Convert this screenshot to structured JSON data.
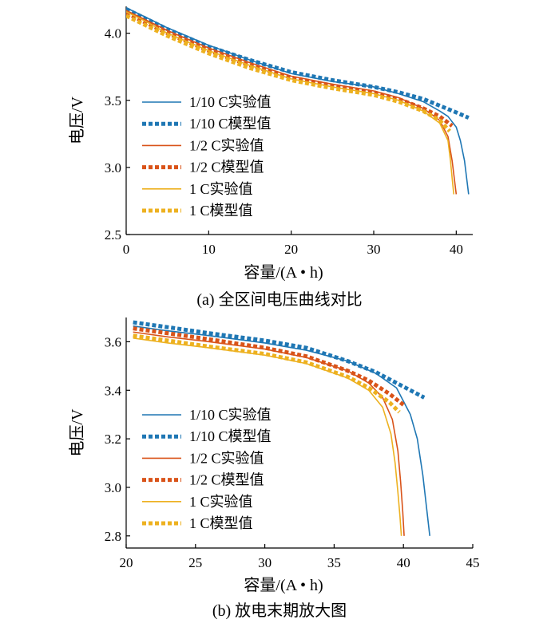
{
  "colors": {
    "s1_10": "#1f77b4",
    "s1_2": "#d95319",
    "s1": "#edb120"
  },
  "chart_data": [
    {
      "type": "line",
      "caption": "(a)  全区间电压曲线对比",
      "xlabel": "容量/(A • h)",
      "ylabel": "电压/V",
      "xlim": [
        0,
        42
      ],
      "ylim": [
        2.5,
        4.2
      ],
      "xticks": [
        0,
        10,
        20,
        30,
        40
      ],
      "yticks": [
        2.5,
        3.0,
        3.5,
        4.0
      ],
      "ytick_labels": [
        "2.5",
        "3.0",
        "3.5",
        "4.0"
      ],
      "legend_position": "left",
      "series": [
        {
          "name": "1/10 C实验值",
          "style": "solid",
          "color_key": "s1_10",
          "x": [
            0,
            2,
            5,
            10,
            15,
            20,
            25,
            30,
            33,
            36,
            38,
            39,
            40,
            40.5,
            41,
            41.3,
            41.5
          ],
          "y": [
            4.19,
            4.13,
            4.04,
            3.91,
            3.8,
            3.7,
            3.64,
            3.6,
            3.55,
            3.49,
            3.42,
            3.38,
            3.3,
            3.2,
            3.05,
            2.9,
            2.8
          ]
        },
        {
          "name": "1/10 C模型值",
          "style": "dotted",
          "color_key": "s1_10",
          "x": [
            0,
            2,
            5,
            10,
            15,
            20,
            25,
            30,
            33,
            36,
            38,
            40,
            41.5
          ],
          "y": [
            4.18,
            4.12,
            4.03,
            3.9,
            3.8,
            3.71,
            3.65,
            3.6,
            3.56,
            3.51,
            3.46,
            3.41,
            3.37
          ]
        },
        {
          "name": "1/2 C实验值",
          "style": "solid",
          "color_key": "s1_2",
          "x": [
            0,
            2,
            5,
            10,
            15,
            20,
            25,
            30,
            33,
            36,
            38,
            39,
            39.5,
            39.8,
            40
          ],
          "y": [
            4.17,
            4.11,
            4.02,
            3.89,
            3.78,
            3.68,
            3.62,
            3.57,
            3.52,
            3.44,
            3.35,
            3.23,
            3.05,
            2.9,
            2.8
          ]
        },
        {
          "name": "1/2 C模型值",
          "style": "dotted",
          "color_key": "s1_2",
          "x": [
            0,
            2,
            5,
            10,
            15,
            20,
            25,
            30,
            33,
            36,
            38,
            39.5
          ],
          "y": [
            4.15,
            4.09,
            4.0,
            3.87,
            3.76,
            3.67,
            3.61,
            3.56,
            3.51,
            3.44,
            3.38,
            3.31
          ]
        },
        {
          "name": "1 C实验值",
          "style": "solid",
          "color_key": "s1",
          "x": [
            0,
            2,
            5,
            10,
            15,
            20,
            25,
            30,
            33,
            36,
            38,
            39,
            39.3,
            39.5,
            39.7
          ],
          "y": [
            4.16,
            4.1,
            4.0,
            3.87,
            3.76,
            3.66,
            3.6,
            3.55,
            3.5,
            3.42,
            3.33,
            3.2,
            3.05,
            2.92,
            2.8
          ]
        },
        {
          "name": "1 C模型值",
          "style": "dotted",
          "color_key": "s1",
          "x": [
            0,
            2,
            5,
            10,
            15,
            20,
            25,
            30,
            33,
            36,
            38,
            39.2
          ],
          "y": [
            4.13,
            4.07,
            3.98,
            3.85,
            3.74,
            3.65,
            3.59,
            3.54,
            3.49,
            3.42,
            3.35,
            3.27
          ]
        }
      ]
    },
    {
      "type": "line",
      "caption": "(b)  放电末期放大图",
      "xlabel": "容量/(A • h)",
      "ylabel": "电压/V",
      "xlim": [
        20,
        45
      ],
      "ylim": [
        2.75,
        3.7
      ],
      "xticks": [
        20,
        25,
        30,
        35,
        40,
        45
      ],
      "yticks": [
        2.8,
        3.0,
        3.2,
        3.4,
        3.6
      ],
      "ytick_labels": [
        "2.8",
        "3.0",
        "3.2",
        "3.4",
        "3.6"
      ],
      "legend_position": "left",
      "series": [
        {
          "name": "1/10 C实验值",
          "style": "solid",
          "color_key": "s1_10",
          "x": [
            20.5,
            23,
            26,
            30,
            33,
            36,
            38,
            39.5,
            40.5,
            41,
            41.4,
            41.7,
            41.9
          ],
          "y": [
            3.665,
            3.645,
            3.625,
            3.595,
            3.565,
            3.52,
            3.47,
            3.41,
            3.3,
            3.2,
            3.05,
            2.9,
            2.8
          ]
        },
        {
          "name": "1/10 C模型值",
          "style": "dotted",
          "color_key": "s1_10",
          "x": [
            20.5,
            23,
            26,
            30,
            33,
            36,
            38,
            40,
            41.5
          ],
          "y": [
            3.68,
            3.66,
            3.635,
            3.605,
            3.575,
            3.52,
            3.475,
            3.415,
            3.37
          ]
        },
        {
          "name": "1/2 C实验值",
          "style": "solid",
          "color_key": "s1_2",
          "x": [
            20.5,
            23,
            26,
            30,
            33,
            36,
            37.5,
            38.5,
            39.2,
            39.6,
            39.8,
            39.95,
            40.05
          ],
          "y": [
            3.64,
            3.62,
            3.6,
            3.57,
            3.535,
            3.48,
            3.43,
            3.37,
            3.28,
            3.15,
            3.02,
            2.9,
            2.8
          ]
        },
        {
          "name": "1/2 C模型值",
          "style": "dotted",
          "color_key": "s1_2",
          "x": [
            20.5,
            23,
            26,
            30,
            33,
            36,
            37.5,
            39,
            40
          ],
          "y": [
            3.655,
            3.635,
            3.61,
            3.575,
            3.54,
            3.48,
            3.44,
            3.385,
            3.34
          ]
        },
        {
          "name": "1 C实验值",
          "style": "solid",
          "color_key": "s1",
          "x": [
            20.5,
            23,
            26,
            30,
            33,
            36,
            37.5,
            38.5,
            39.1,
            39.4,
            39.6,
            39.75,
            39.85
          ],
          "y": [
            3.615,
            3.595,
            3.575,
            3.545,
            3.51,
            3.45,
            3.4,
            3.33,
            3.22,
            3.1,
            2.98,
            2.88,
            2.8
          ]
        },
        {
          "name": "1 C模型值",
          "style": "dotted",
          "color_key": "s1",
          "x": [
            20.5,
            23,
            26,
            30,
            33,
            36,
            37.5,
            39,
            39.7
          ],
          "y": [
            3.625,
            3.605,
            3.58,
            3.55,
            3.515,
            3.455,
            3.41,
            3.35,
            3.31
          ]
        }
      ]
    }
  ]
}
